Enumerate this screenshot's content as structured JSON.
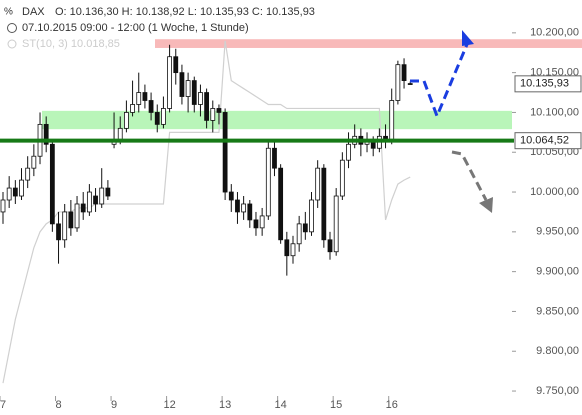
{
  "chart_data": {
    "type": "candlestick",
    "header": {
      "symbol": "DAX",
      "ohlc_label": "O: 10.136,30  H: 10.138,92  L: 10.135,93  C: 10.135,93",
      "period": "07.10.2015 09:00 - 12:00 (1 Woche, 1 Stunde)"
    },
    "categories": [
      "7",
      null,
      null,
      null,
      null,
      null,
      null,
      null,
      null,
      "8",
      null,
      null,
      null,
      null,
      null,
      null,
      null,
      null,
      "9",
      null,
      null,
      null,
      null,
      null,
      null,
      null,
      null,
      "12",
      null,
      null,
      null,
      null,
      null,
      null,
      null,
      null,
      "13",
      null,
      null,
      null,
      null,
      null,
      null,
      null,
      null,
      "14",
      null,
      null,
      null,
      null,
      null,
      null,
      null,
      null,
      "15",
      null,
      null,
      null,
      null,
      null,
      null,
      null,
      null,
      "16",
      null,
      null,
      null
    ],
    "open": [
      9975,
      9990,
      10005,
      9995,
      10015,
      10030,
      10045,
      10085,
      10060,
      9960,
      9940,
      9975,
      9955,
      9985,
      9975,
      9995,
      9985,
      10005,
      10060,
      10065,
      10080,
      10100,
      10110,
      10125,
      10115,
      10100,
      10085,
      10105,
      10170,
      10150,
      10120,
      10140,
      10110,
      10125,
      10090,
      10105,
      10100,
      10000,
      9990,
      9975,
      9985,
      9965,
      9955,
      9970,
      10055,
      10030,
      9940,
      9920,
      9935,
      9960,
      9950,
      9990,
      10030,
      9940,
      9925,
      9995,
      10040,
      10060,
      10070,
      10060,
      10065,
      10055,
      10070,
      10065,
      10115,
      10160,
      10136.3
    ],
    "high": [
      10000,
      10020,
      10015,
      10030,
      10045,
      10060,
      10100,
      10095,
      10065,
      9975,
      9985,
      9990,
      9995,
      10000,
      10010,
      10005,
      10030,
      10015,
      10100,
      10095,
      10115,
      10140,
      10150,
      10135,
      10125,
      10110,
      10120,
      10185,
      10180,
      10160,
      10150,
      10145,
      10135,
      10130,
      10115,
      10110,
      10105,
      10010,
      10000,
      9995,
      9990,
      9975,
      9980,
      10065,
      10065,
      10035,
      9950,
      9945,
      9970,
      9975,
      10000,
      10040,
      10035,
      9950,
      10005,
      10050,
      10075,
      10085,
      10080,
      10075,
      10070,
      10080,
      10085,
      10130,
      10165,
      10168,
      10138.92
    ],
    "low": [
      9960,
      9980,
      9985,
      9990,
      10005,
      10020,
      10035,
      10050,
      9950,
      9910,
      9930,
      9945,
      9950,
      9965,
      9970,
      9975,
      9980,
      9990,
      10055,
      10060,
      10075,
      10095,
      10100,
      10105,
      10090,
      10075,
      10080,
      10100,
      10135,
      10110,
      10100,
      10100,
      10095,
      10080,
      10075,
      10085,
      9990,
      9975,
      9960,
      9965,
      9955,
      9945,
      9945,
      9965,
      10020,
      9935,
      9895,
      9910,
      9925,
      9940,
      9945,
      9980,
      9930,
      9915,
      9920,
      9990,
      10030,
      10055,
      10045,
      10050,
      10045,
      10050,
      10055,
      10060,
      10110,
      10130,
      10135.93
    ],
    "close": [
      9990,
      10005,
      9995,
      10015,
      10030,
      10045,
      10085,
      10060,
      9960,
      9940,
      9975,
      9955,
      9985,
      9975,
      10000,
      9985,
      10005,
      9995,
      10065,
      10080,
      10100,
      10110,
      10125,
      10115,
      10100,
      10085,
      10105,
      10170,
      10150,
      10120,
      10140,
      10110,
      10125,
      10090,
      10105,
      10100,
      10000,
      9990,
      9975,
      9985,
      9965,
      9955,
      9970,
      10055,
      10030,
      9940,
      9920,
      9935,
      9960,
      9950,
      9990,
      10030,
      9940,
      9925,
      9995,
      10040,
      10060,
      10070,
      10060,
      10065,
      10055,
      10070,
      10065,
      10115,
      10160,
      10140,
      10135.93
    ],
    "indicator": {
      "name": "ST(10, 3)",
      "value_label": "10.018,85",
      "color": "#d0d0d0",
      "values": [
        9760,
        9800,
        9840,
        9870,
        9900,
        9930,
        9950,
        9960,
        9965,
        9975,
        9975,
        9975,
        9980,
        9980,
        9980,
        9985,
        9985,
        9985,
        9985,
        9985,
        9985,
        9985,
        9985,
        9985,
        9985,
        9985,
        9985,
        10075,
        10075,
        10075,
        10075,
        10075,
        10075,
        10075,
        10075,
        10075,
        10190,
        10140,
        10135,
        10130,
        10125,
        10120,
        10115,
        10110,
        10110,
        10110,
        10105,
        10105,
        10105,
        10105,
        10105,
        10105,
        10105,
        10105,
        10105,
        10105,
        10105,
        10105,
        10105,
        10105,
        10105,
        10105,
        9965,
        9990,
        10010,
        10015,
        10018.85
      ]
    },
    "bands": [
      {
        "from": 10181,
        "to": 10192,
        "color": "#f8b9b9"
      },
      {
        "from": 10079,
        "to": 10102,
        "color": "#b9f5b9"
      }
    ],
    "level": {
      "value": 10064.52,
      "label": "10.064,52",
      "color": "#177a17"
    },
    "last_price": {
      "value": 10135.93,
      "label": "10.135,93"
    },
    "ylim": [
      9740,
      10240
    ],
    "yticks": [
      {
        "value": 10200,
        "label": "10.200,00"
      },
      {
        "value": 10150,
        "label": "10.150,00"
      },
      {
        "value": 10100,
        "label": "10.100,00"
      },
      {
        "value": 10050,
        "label": "10.050,00"
      },
      {
        "value": 10000,
        "label": "10.000,00"
      },
      {
        "value": 9950,
        "label": "9.950,00"
      },
      {
        "value": 9900,
        "label": "9.900,00"
      },
      {
        "value": 9850,
        "label": "9.850,00"
      },
      {
        "value": 9800,
        "label": "9.800,00"
      },
      {
        "value": 9750,
        "label": "9.750,00"
      }
    ]
  }
}
